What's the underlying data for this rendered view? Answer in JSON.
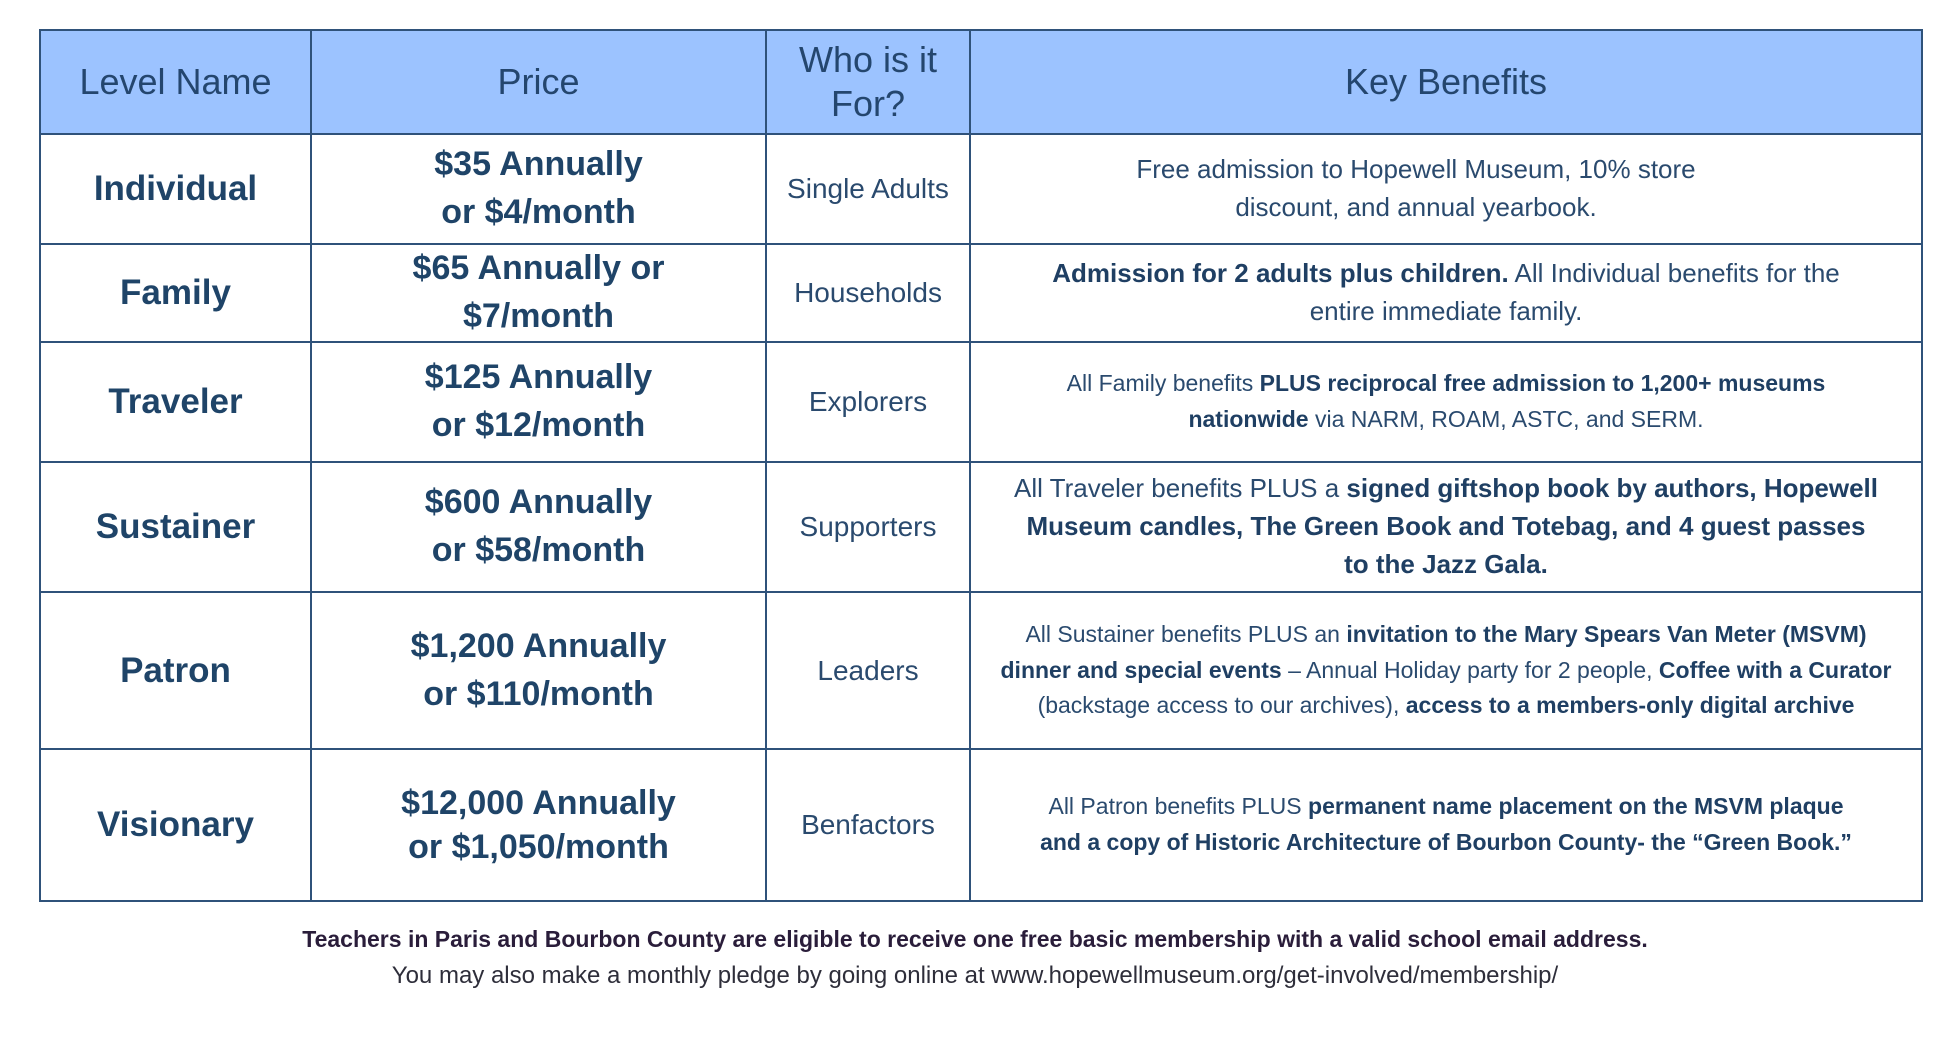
{
  "table": {
    "headers": [
      "Level Name",
      "Price",
      "Who is it For?",
      "Key Benefits"
    ],
    "rows": [
      {
        "level": "Individual",
        "price": [
          "$35 Annually",
          "or $4/month"
        ],
        "who": "Single Adults",
        "benefits": [
          {
            "text": "Free admission to Hopewell Museum, 10% store discount, and annual yearbook.",
            "bold": false
          }
        ]
      },
      {
        "level": "Family",
        "price": [
          "$65 Annually or",
          "$7/month"
        ],
        "who": "Households",
        "benefits": [
          {
            "text": "Admission for 2 adults plus children.",
            "bold": true
          },
          {
            "text": " All Individual benefits for the entire immediate family.",
            "bold": false
          }
        ]
      },
      {
        "level": "Traveler",
        "price": [
          "$125 Annually",
          "or $12/month"
        ],
        "who": "Explorers",
        "benefits": [
          {
            "text": "All Family benefits ",
            "bold": false
          },
          {
            "text": "PLUS reciprocal free admission to 1,200+ museums nationwide",
            "bold": true
          },
          {
            "text": " via NARM, ROAM, ASTC, and SERM.",
            "bold": false
          }
        ]
      },
      {
        "level": "Sustainer",
        "price": [
          "$600 Annually",
          "or $58/month"
        ],
        "who": "Supporters",
        "benefits": [
          {
            "text": "All Traveler benefits PLUS a ",
            "bold": false
          },
          {
            "text": "signed giftshop book by authors, Hopewell Museum candles, The Green Book and Totebag, and 4 guest passes to the Jazz Gala.",
            "bold": true
          }
        ]
      },
      {
        "level": "Patron",
        "price": [
          "$1,200 Annually",
          "or $110/month"
        ],
        "who": "Leaders",
        "benefits": [
          {
            "text": "All Sustainer benefits PLUS an ",
            "bold": false
          },
          {
            "text": "invitation to the Mary Spears Van Meter (MSVM) dinner and special events",
            "bold": true
          },
          {
            "text": " – Annual Holiday party for 2 people, ",
            "bold": false
          },
          {
            "text": "Coffee with a Curator",
            "bold": true
          },
          {
            "text": " (backstage access to our archives), ",
            "bold": false
          },
          {
            "text": "access to a members-only digital archive",
            "bold": true
          }
        ]
      },
      {
        "level": "Visionary",
        "price": [
          "$12,000 Annually",
          "or $1,050/month"
        ],
        "who": "Benfactors",
        "benefits": [
          {
            "text": "All Patron benefits PLUS ",
            "bold": false
          },
          {
            "text": "permanent name placement on the MSVM plaque and a copy of Historic Architecture of Bourbon County- the “Green Book.”",
            "bold": true
          }
        ]
      }
    ]
  },
  "footer": {
    "teachers_note": "Teachers in Paris and Bourbon County are eligible to receive one free basic membership with a  valid school email address.",
    "pledge_note": "You may also make a monthly pledge by going online at www.hopewellmuseum.org/get-involved/membership/"
  }
}
